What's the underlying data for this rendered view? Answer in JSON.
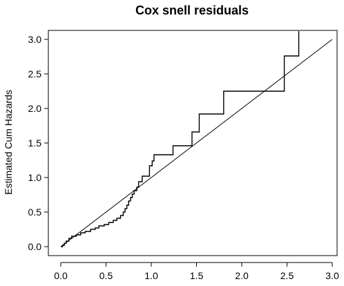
{
  "chart_data": {
    "type": "line",
    "title": "Cox snell residuals",
    "xlabel": "",
    "ylabel": "Estimated Cum Hazards",
    "xlim": [
      0.0,
      3.0
    ],
    "ylim": [
      0.0,
      3.0
    ],
    "x_ticks": [
      {
        "value": 0.0,
        "label": "0.0"
      },
      {
        "value": 0.5,
        "label": "0.5"
      },
      {
        "value": 1.0,
        "label": "1.0"
      },
      {
        "value": 1.5,
        "label": "1.5"
      },
      {
        "value": 2.0,
        "label": "2.0"
      },
      {
        "value": 2.5,
        "label": "2.5"
      },
      {
        "value": 3.0,
        "label": "3.0"
      }
    ],
    "y_ticks": [
      {
        "value": 0.0,
        "label": "0.0"
      },
      {
        "value": 0.5,
        "label": "0.5"
      },
      {
        "value": 1.0,
        "label": "1.0"
      },
      {
        "value": 1.5,
        "label": "1.5"
      },
      {
        "value": 2.0,
        "label": "2.0"
      },
      {
        "value": 2.5,
        "label": "2.5"
      },
      {
        "value": 3.0,
        "label": "3.0"
      }
    ],
    "grid": false,
    "legend": "none",
    "colors": {
      "line": "#000000",
      "background": "#ffffff"
    },
    "series": [
      {
        "kind": "step",
        "x": [
          0.0,
          0.02,
          0.04,
          0.06,
          0.09,
          0.12,
          0.17,
          0.22,
          0.27,
          0.33,
          0.38,
          0.42,
          0.48,
          0.53,
          0.58,
          0.62,
          0.66,
          0.69,
          0.71,
          0.73,
          0.75,
          0.77,
          0.79,
          0.81,
          0.84,
          0.86,
          0.9,
          0.98,
          1.01,
          1.03,
          1.24,
          1.45,
          1.53,
          1.8,
          2.47,
          2.63,
          2.63
        ],
        "y": [
          0.0,
          0.02,
          0.05,
          0.08,
          0.12,
          0.15,
          0.17,
          0.2,
          0.22,
          0.25,
          0.27,
          0.3,
          0.32,
          0.35,
          0.38,
          0.41,
          0.45,
          0.5,
          0.55,
          0.6,
          0.66,
          0.71,
          0.76,
          0.81,
          0.86,
          0.94,
          1.02,
          1.17,
          1.24,
          1.33,
          1.46,
          1.66,
          1.92,
          2.25,
          2.76,
          3.12,
          3.12
        ]
      },
      {
        "kind": "reference",
        "x": [
          0.0,
          3.0
        ],
        "y": [
          0.0,
          3.0
        ]
      }
    ]
  }
}
